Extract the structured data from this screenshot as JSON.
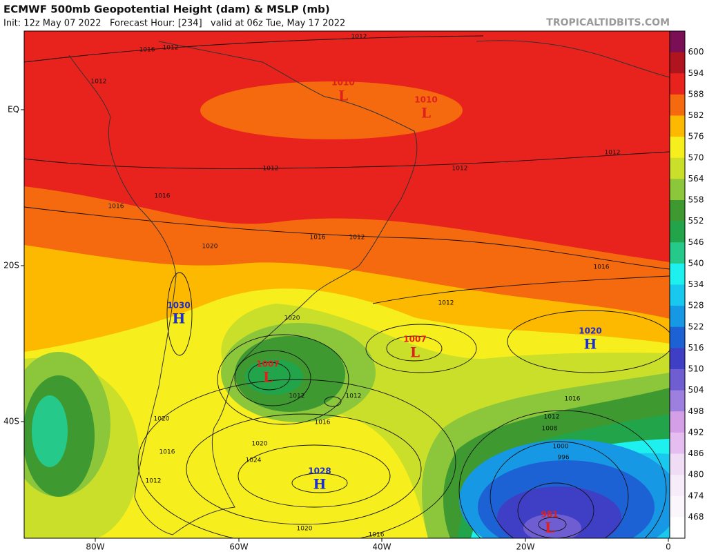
{
  "header": {
    "title": "ECMWF 500mb Geopotential Height (dam) & MSLP (mb)",
    "subtitle": "Init: 12z May 07 2022   Forecast Hour: [234]   valid at 06z Tue, May 17 2022",
    "credit": "TROPICALTIDBITS.COM"
  },
  "axes": {
    "latitude_labels": [
      "EQ",
      "20S",
      "40S"
    ],
    "longitude_labels": [
      "80W",
      "60W",
      "40W",
      "20W",
      "0"
    ]
  },
  "colorbar": {
    "labels": [
      600,
      594,
      588,
      582,
      576,
      570,
      564,
      558,
      552,
      546,
      540,
      534,
      528,
      522,
      516,
      510,
      504,
      498,
      492,
      486,
      480,
      474,
      468
    ],
    "colors": [
      "#7a0f55",
      "#b0141e",
      "#e8221c",
      "#f5690f",
      "#fdb800",
      "#f7ee1e",
      "#c9df2a",
      "#8cc63b",
      "#3e9a30",
      "#22a54a",
      "#25c98a",
      "#1ef0f0",
      "#18c8ee",
      "#1698e4",
      "#1d62d4",
      "#3f3fc6",
      "#6f5dd2",
      "#9d7fe0",
      "#d59fe8",
      "#e6bdf0",
      "#f0dcf5",
      "#f7ecfa",
      "#fbf5fc",
      "#ffffff"
    ]
  },
  "pressure_centers": [
    {
      "value": "1030",
      "letter": "H",
      "color": "#1d2fc4"
    },
    {
      "value": "1010",
      "letter": "L",
      "color": "#e0201c"
    },
    {
      "value": "1010",
      "letter": "L",
      "color": "#e0201c"
    },
    {
      "value": "1007",
      "letter": "L",
      "color": "#e0201c"
    },
    {
      "value": "1007",
      "letter": "L",
      "color": "#e0201c"
    },
    {
      "value": "1020",
      "letter": "H",
      "color": "#1d2fc4"
    },
    {
      "value": "1028",
      "letter": "H",
      "color": "#1d2fc4"
    },
    {
      "value": "981",
      "letter": "L",
      "color": "#e0201c"
    }
  ],
  "contour_labels": [
    "1012",
    "1016",
    "1012",
    "1012",
    "1012",
    "1012",
    "1012",
    "1016",
    "1016",
    "1020",
    "1016",
    "1012",
    "1016",
    "1012",
    "1020",
    "1012",
    "1012",
    "1016",
    "1016",
    "1012",
    "1008",
    "1000",
    "996",
    "1020",
    "1024",
    "1020",
    "1016",
    "1012",
    "1020",
    "1016"
  ]
}
